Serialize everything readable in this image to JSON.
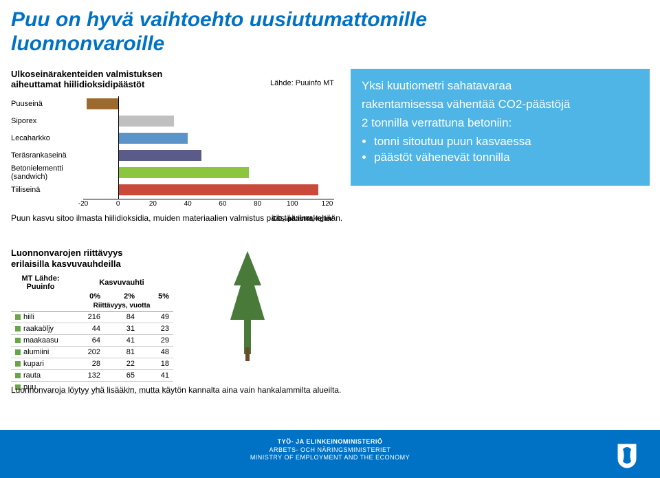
{
  "title_line1": "Puu on hyvä vaihtoehto uusiutumattomille",
  "title_line2": "luonnonvaroille",
  "chart1": {
    "heading1": "Ulkoseinärakenteiden valmistuksen",
    "heading2": "aiheuttamat hiilidioksidipäästöt",
    "source": "Lähde: Puuinfo  MT",
    "xmin": -20,
    "xmax": 120,
    "ticks": [
      "-20",
      "0",
      "20",
      "40",
      "60",
      "80",
      "100",
      "120"
    ],
    "unit": "CO₂-päästöt, kg/m²",
    "bars": [
      {
        "label": "Puuseinä",
        "value": -18,
        "color": "#9c6a2e"
      },
      {
        "label": "Siporex",
        "value": 32,
        "color": "#c0c0c0"
      },
      {
        "label": "Lecaharkko",
        "value": 40,
        "color": "#5a94c8"
      },
      {
        "label": "Teräsrankaseinä",
        "value": 48,
        "color": "#5b5b8a"
      },
      {
        "label": "Betonielementti\n(sandwich)",
        "value": 75,
        "color": "#8cc63f"
      },
      {
        "label": "Tiiliseinä",
        "value": 115,
        "color": "#c94a3b"
      }
    ]
  },
  "bluebox": {
    "line1": "Yksi kuutiometri  sahatavaraa",
    "line2": "rakentamisessa vähentää CO2-päästöjä",
    "line3": "2 tonnilla verrattuna betoniin:",
    "bullet1": "tonni sitoutuu puun kasvaessa",
    "bullet2": "päästöt vähenevät tonnilla"
  },
  "caption1": "Puun kasvu sitoo ilmasta hiilidioksidia, muiden materiaalien valmistus päästää ilmakehään.",
  "chart2": {
    "heading1": "Luonnonvarojen riittävyys",
    "heading2": "erilaisilla kasvuvauhdeilla",
    "source": "MT  Lähde: Puuinfo",
    "col_head_top": "Kasvuvauhti",
    "col_head_sub": "Riittävyys, vuotta",
    "cols": [
      "0%",
      "2%",
      "5%"
    ],
    "rows": [
      {
        "label": "hiili",
        "v": [
          "216",
          "84",
          "49"
        ]
      },
      {
        "label": "raakaöljy",
        "v": [
          "44",
          "31",
          "23"
        ]
      },
      {
        "label": "maakaasu",
        "v": [
          "64",
          "41",
          "29"
        ]
      },
      {
        "label": "alumiini",
        "v": [
          "202",
          "81",
          "48"
        ]
      },
      {
        "label": "kupari",
        "v": [
          "28",
          "22",
          "18"
        ]
      },
      {
        "label": "rauta",
        "v": [
          "132",
          "65",
          "41"
        ]
      },
      {
        "label": "puu",
        "v": [
          "...",
          "...",
          "..."
        ]
      }
    ]
  },
  "caption2": "Luonnonvaroja löytyy yhä lisääkin, mutta käytön kannalta aina vain hankalammilta alueilta.",
  "footer": {
    "l1": "TYÖ- JA ELINKEINOMINISTERIÖ",
    "l2": "ARBETS- OCH NÄRINGSMINISTERIET",
    "l3": "MINISTRY OF EMPLOYMENT AND THE ECONOMY"
  },
  "colors": {
    "title": "#0072c6",
    "box": "#4fb4e6",
    "footer": "#0072c6"
  }
}
